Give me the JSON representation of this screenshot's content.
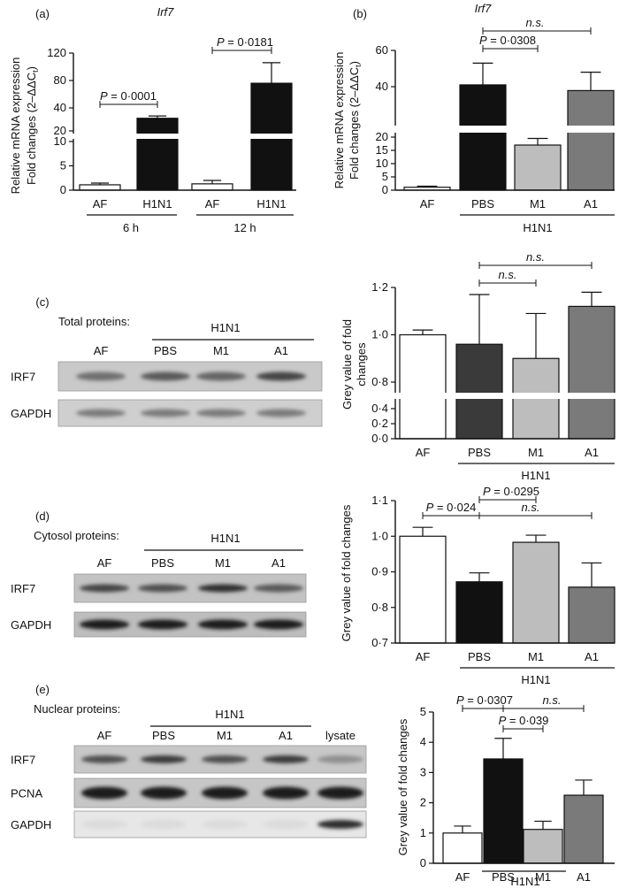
{
  "chart_data": [
    {
      "panel": "(a)",
      "title": "Irf7",
      "type": "bar",
      "ylabel": [
        "Relative mRNA expression",
        "Fold changes (2–ΔΔC",
        "t",
        ")"
      ],
      "categories": [
        "AF",
        "H1N1",
        "AF",
        "H1N1"
      ],
      "groups": [
        {
          "label": "6 h"
        },
        {
          "label": "12 h"
        }
      ],
      "values": [
        1.1,
        31,
        1.3,
        76
      ],
      "errors": [
        0.35,
        2,
        0.7,
        30
      ],
      "fills": [
        "#ffffff",
        "#111111",
        "#ffffff",
        "#111111"
      ],
      "ticks_lower": [
        "0",
        "5",
        "10"
      ],
      "ticks_upper": [
        "20",
        "40",
        "80",
        "120"
      ],
      "annotations": [
        {
          "p": "P",
          "text": " = 0·0001"
        },
        {
          "p": "P",
          "text": " = 0·0181"
        }
      ]
    },
    {
      "panel": "(b)",
      "title": "Irf7",
      "type": "bar",
      "ylabel": [
        "Relative mRNA expression",
        "Fold changes (2–ΔΔC",
        "t",
        ")"
      ],
      "categories": [
        "AF",
        "PBS",
        "M1",
        "A1"
      ],
      "group_label": "H1N1",
      "values": [
        1.1,
        41,
        17,
        38
      ],
      "errors": [
        0.4,
        12,
        2.5,
        10
      ],
      "fills": [
        "#ffffff",
        "#111111",
        "#bdbdbd",
        "#7a7a7a"
      ],
      "ticks_lower": [
        "0",
        "5",
        "10",
        "15",
        "20"
      ],
      "ticks_upper": [
        "40",
        "60"
      ],
      "annotations": [
        {
          "p": "P",
          "text": " = 0·0308"
        },
        {
          "p": "",
          "text": "n.s."
        }
      ]
    },
    {
      "panel": "(c)",
      "type": "bar",
      "ylabel": [
        "Grey value of fold",
        "changes"
      ],
      "categories": [
        "AF",
        "PBS",
        "M1",
        "A1"
      ],
      "group_label": "H1N1",
      "values": [
        1.0,
        0.96,
        0.9,
        1.12
      ],
      "errors": [
        0.02,
        0.21,
        0.19,
        0.06
      ],
      "fills": [
        "#ffffff",
        "#3a3a3a",
        "#bdbdbd",
        "#7a7a7a"
      ],
      "ticks_lower": [
        "0·0",
        "0·2",
        "0·4"
      ],
      "ticks_upper": [
        "0·8",
        "1·0",
        "1·2"
      ],
      "annotations": [
        {
          "p": "",
          "text": "n.s."
        },
        {
          "p": "",
          "text": "n.s."
        }
      ]
    },
    {
      "panel": "(d)",
      "type": "bar",
      "ylabel": [
        "Grey value of fold changes"
      ],
      "categories": [
        "AF",
        "PBS",
        "M1",
        "A1"
      ],
      "group_label": "H1N1",
      "values": [
        1.0,
        0.872,
        0.983,
        0.857
      ],
      "errors": [
        0.025,
        0.025,
        0.02,
        0.068
      ],
      "fills": [
        "#ffffff",
        "#111111",
        "#bdbdbd",
        "#7a7a7a"
      ],
      "ylim": [
        0.7,
        1.1
      ],
      "ticks": [
        "0·7",
        "0·8",
        "0·9",
        "1·0",
        "1·1"
      ],
      "annotations": [
        {
          "p": "P",
          "text": " = 0·024"
        },
        {
          "p": "P",
          "text": " = 0·0295"
        },
        {
          "p": "",
          "text": "n.s."
        }
      ]
    },
    {
      "panel": "(e)",
      "type": "bar",
      "ylabel": [
        "Grey value of fold changes"
      ],
      "categories": [
        "AF",
        "PBS",
        "M1",
        "A1"
      ],
      "group_label": "H1N1",
      "values": [
        1.0,
        3.45,
        1.12,
        2.25
      ],
      "errors": [
        0.23,
        0.68,
        0.27,
        0.5
      ],
      "fills": [
        "#ffffff",
        "#111111",
        "#bdbdbd",
        "#7a7a7a"
      ],
      "ylim": [
        0,
        5
      ],
      "ticks": [
        "0",
        "1",
        "2",
        "3",
        "4",
        "5"
      ],
      "annotations": [
        {
          "p": "P",
          "text": " = 0·0307"
        },
        {
          "p": "P",
          "text": " = 0·039"
        },
        {
          "p": "",
          "text": "n.s."
        }
      ]
    }
  ],
  "blots": {
    "c": {
      "panel": "(c)",
      "header": "Total proteins:",
      "group": "H1N1",
      "lanes": [
        "AF",
        "PBS",
        "M1",
        "A1"
      ],
      "rows": [
        {
          "label": "IRF7",
          "intensity": [
            0.55,
            0.65,
            0.6,
            0.75
          ]
        },
        {
          "label": "GAPDH",
          "intensity": [
            0.5,
            0.5,
            0.5,
            0.5
          ]
        }
      ]
    },
    "d": {
      "panel": "(d)",
      "header": "Cytosol proteins:",
      "group": "H1N1",
      "lanes": [
        "AF",
        "PBS",
        "M1",
        "A1"
      ],
      "rows": [
        {
          "label": "IRF7",
          "intensity": [
            0.75,
            0.7,
            0.85,
            0.65
          ]
        },
        {
          "label": "GAPDH",
          "intensity": [
            0.95,
            0.95,
            0.95,
            0.95
          ]
        }
      ]
    },
    "e": {
      "panel": "(e)",
      "header": "Nuclear proteins:",
      "group": "H1N1",
      "lanes": [
        "AF",
        "PBS",
        "M1",
        "A1",
        "lysate"
      ],
      "rows": [
        {
          "label": "IRF7",
          "intensity": [
            0.7,
            0.8,
            0.7,
            0.8,
            0.4
          ]
        },
        {
          "label": "PCNA",
          "intensity": [
            0.95,
            0.95,
            0.95,
            0.95,
            0.95
          ]
        },
        {
          "label": "GAPDH",
          "intensity": [
            0.05,
            0.05,
            0.05,
            0.05,
            0.85
          ]
        }
      ]
    }
  }
}
